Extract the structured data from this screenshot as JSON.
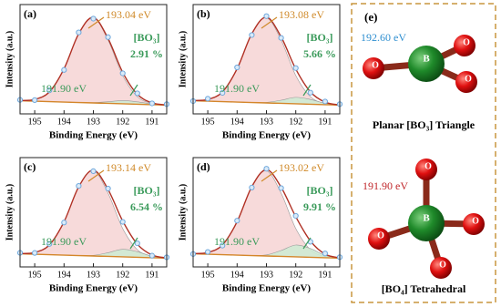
{
  "chart_data": [
    {
      "type": "line",
      "panel_label": "(a)",
      "xlabel": "Binding Energy (eV)",
      "ylabel": "Intensity (a.u.)",
      "x": [
        195.5,
        195,
        194.5,
        194,
        193.5,
        193,
        192.5,
        192,
        191.5,
        191,
        190.5
      ],
      "xlim": [
        195.5,
        190.5
      ],
      "xticks": [
        195,
        194,
        193,
        192,
        191
      ],
      "ylim": [
        0,
        100
      ],
      "series": [
        {
          "type": "baseline",
          "color": "#d4862a",
          "values": [
            12,
            11.6,
            11.2,
            10.8,
            10.4,
            10,
            9.6,
            9.2,
            8.8,
            8.4,
            8
          ]
        },
        {
          "type": "area",
          "color": "#f6d3d3",
          "values": [
            12.2,
            13.2,
            20.1,
            41.3,
            73.3,
            88,
            67.5,
            35.1,
            15.7,
            9.5,
            8.1
          ]
        },
        {
          "type": "area",
          "color": "#cdebd2",
          "values": [
            12,
            11.6,
            11.2,
            10.8,
            10.4,
            10.3,
            11.1,
            12.1,
            11,
            9,
            8.1
          ]
        },
        {
          "type": "line",
          "color": "#b03024",
          "values": [
            12.2,
            13.2,
            20.1,
            41.3,
            73.3,
            88.3,
            69,
            38,
            17.9,
            10.1,
            8.2
          ]
        },
        {
          "type": "scatter",
          "color": "#6fa8dc",
          "values": [
            12.8,
            12.6,
            21.5,
            40.2,
            74.5,
            87.1,
            70.2,
            37.1,
            18.8,
            9.6,
            8.9
          ]
        }
      ],
      "annotations": {
        "peak": "193.04 eV",
        "species": "[BO₃]",
        "percent": "2.91 %",
        "minor": "191.90 eV"
      }
    },
    {
      "type": "line",
      "panel_label": "(b)",
      "xlabel": "Binding Energy (eV)",
      "ylabel": "Intensity (a.u.)",
      "x": [
        195.5,
        195,
        194.5,
        194,
        193.5,
        193,
        192.5,
        192,
        191.5,
        191,
        190.5
      ],
      "xlim": [
        195.5,
        190.5
      ],
      "xticks": [
        195,
        194,
        193,
        192,
        191
      ],
      "ylim": [
        0,
        100
      ],
      "series": [
        {
          "type": "baseline",
          "color": "#d4862a",
          "values": [
            12,
            11.6,
            11.2,
            10.8,
            10.4,
            10,
            9.6,
            9.2,
            8.8,
            8.4,
            8
          ]
        },
        {
          "type": "area",
          "color": "#f6d3d3",
          "values": [
            12.2,
            13.2,
            20.1,
            41.3,
            73.3,
            88,
            67.5,
            35.1,
            15.7,
            9.5,
            8.1
          ]
        },
        {
          "type": "area",
          "color": "#cdebd2",
          "values": [
            12,
            11.6,
            11.2,
            10.8,
            10.4,
            10.5,
            12.5,
            15.1,
            13.2,
            9.6,
            8.1
          ]
        },
        {
          "type": "line",
          "color": "#b03024",
          "values": [
            12.2,
            13.2,
            20.1,
            41.3,
            73.3,
            88.5,
            70.4,
            41,
            20.1,
            10.7,
            8.2
          ]
        },
        {
          "type": "scatter",
          "color": "#6fa8dc",
          "values": [
            11.7,
            13.9,
            19.2,
            42.5,
            72.1,
            89.4,
            69.5,
            41.9,
            19.4,
            11.3,
            8.9
          ]
        }
      ],
      "annotations": {
        "peak": "193.08 eV",
        "species": "[BO₃]",
        "percent": "5.66 %",
        "minor": "191.90 eV"
      }
    },
    {
      "type": "line",
      "panel_label": "(c)",
      "xlabel": "Binding Energy (eV)",
      "ylabel": "Intensity (a.u.)",
      "x": [
        195.5,
        195,
        194.5,
        194,
        193.5,
        193,
        192.5,
        192,
        191.5,
        191,
        190.5
      ],
      "xlim": [
        195.5,
        190.5
      ],
      "xticks": [
        195,
        194,
        193,
        192,
        191
      ],
      "ylim": [
        0,
        100
      ],
      "series": [
        {
          "type": "baseline",
          "color": "#d4862a",
          "values": [
            12,
            11.6,
            11.2,
            10.8,
            10.4,
            10,
            9.6,
            9.2,
            8.8,
            8.4,
            8
          ]
        },
        {
          "type": "area",
          "color": "#f6d3d3",
          "values": [
            12.2,
            13.2,
            20.1,
            41.3,
            73.3,
            88,
            67.5,
            35.1,
            15.7,
            9.5,
            8.1
          ]
        },
        {
          "type": "area",
          "color": "#cdebd2",
          "values": [
            12,
            11.6,
            11.2,
            10.8,
            10.4,
            10.6,
            13,
            16.1,
            13.9,
            9.8,
            8.1
          ]
        },
        {
          "type": "line",
          "color": "#b03024",
          "values": [
            12.2,
            13.2,
            20.1,
            41.3,
            73.3,
            88.6,
            70.9,
            42,
            20.8,
            10.9,
            8.2
          ]
        },
        {
          "type": "scatter",
          "color": "#6fa8dc",
          "values": [
            12.9,
            12.8,
            21,
            40.6,
            74.1,
            87.6,
            71.7,
            41.2,
            21.6,
            10.3,
            8.8
          ]
        }
      ],
      "annotations": {
        "peak": "193.14 eV",
        "species": "[BO₃]",
        "percent": "6.54 %",
        "minor": "191.90 eV"
      }
    },
    {
      "type": "line",
      "panel_label": "(d)",
      "xlabel": "Binding Energy (eV)",
      "ylabel": "Intensity (a.u.)",
      "x": [
        195.5,
        195,
        194.5,
        194,
        193.5,
        193,
        192.5,
        192,
        191.5,
        191,
        190.5
      ],
      "xlim": [
        195.5,
        190.5
      ],
      "xticks": [
        195,
        194,
        193,
        192,
        191
      ],
      "ylim": [
        0,
        100
      ],
      "series": [
        {
          "type": "baseline",
          "color": "#d4862a",
          "values": [
            12,
            11.6,
            11.2,
            10.8,
            10.4,
            10,
            9.6,
            9.2,
            8.8,
            8.4,
            8
          ]
        },
        {
          "type": "area",
          "color": "#f6d3d3",
          "values": [
            12.2,
            13.2,
            20.1,
            41.3,
            73.3,
            88,
            67.5,
            35.1,
            15.7,
            9.5,
            8.1
          ]
        },
        {
          "type": "area",
          "color": "#cdebd2",
          "values": [
            12,
            11.6,
            11.2,
            10.8,
            10.5,
            11,
            15,
            20,
            16.8,
            10.6,
            8.2
          ]
        },
        {
          "type": "line",
          "color": "#b03024",
          "values": [
            12.2,
            13.2,
            20.1,
            41.4,
            73.4,
            89,
            72.9,
            45.9,
            23.7,
            11.7,
            8.3
          ]
        },
        {
          "type": "scatter",
          "color": "#6fa8dc",
          "values": [
            11.8,
            13.7,
            19.5,
            42.3,
            72.6,
            89.8,
            72.1,
            46.7,
            23,
            12.3,
            8.9
          ]
        }
      ],
      "annotations": {
        "peak": "193.02 eV",
        "species": "[BO₃]",
        "percent": "9.91 %",
        "minor": "191.90 eV"
      }
    }
  ],
  "panel_e": {
    "label": "(e)",
    "planar": {
      "energy": "192.60 eV",
      "caption": "Planar [BO₃] Triangle",
      "atoms": [
        "B",
        "O",
        "O",
        "O"
      ]
    },
    "tetrahedral": {
      "energy": "191.90 eV",
      "caption": "[BO₄] Tetrahedral",
      "atoms": [
        "B",
        "O",
        "O",
        "O",
        "O"
      ]
    }
  }
}
